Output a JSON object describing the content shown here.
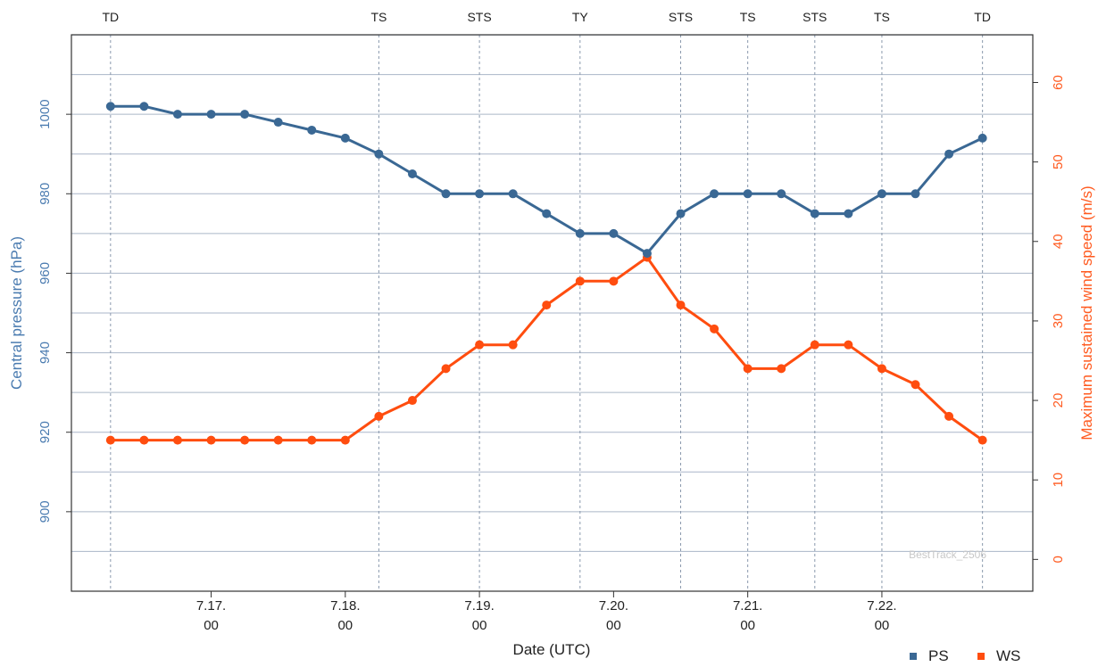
{
  "chart_data": {
    "type": "line",
    "xlabel": "Date (UTC)",
    "ylabel_left": "Central pressure (hPa)",
    "ylabel_right": "Maximum sustained wind speed (m/s)",
    "ylim_left": [
      880,
      1020
    ],
    "ylim_right": [
      -4,
      66
    ],
    "left_ticks": [
      900,
      920,
      940,
      960,
      980,
      1000
    ],
    "right_ticks": [
      0,
      10,
      20,
      30,
      40,
      50,
      60
    ],
    "x_ticks": [
      {
        "t": 18,
        "line1": "7.17.",
        "line2": "00"
      },
      {
        "t": 42,
        "line1": "7.18.",
        "line2": "00"
      },
      {
        "t": 66,
        "line1": "7.19.",
        "line2": "00"
      },
      {
        "t": 90,
        "line1": "7.20.",
        "line2": "00"
      },
      {
        "t": 114,
        "line1": "7.21.",
        "line2": "00"
      },
      {
        "t": 138,
        "line1": "7.22.",
        "line2": "00"
      }
    ],
    "x_range": [
      -7,
      165
    ],
    "times": [
      0,
      6,
      12,
      18,
      24,
      30,
      36,
      42,
      48,
      54,
      60,
      66,
      72,
      78,
      84,
      90,
      96,
      102,
      108,
      114,
      120,
      126,
      132,
      138,
      144,
      150,
      156
    ],
    "series": [
      {
        "name": "PS",
        "axis": "left",
        "color": "#3a6894",
        "values": [
          1002,
          1002,
          1000,
          1000,
          1000,
          998,
          996,
          994,
          990,
          985,
          980,
          980,
          980,
          975,
          970,
          970,
          965,
          975,
          980,
          980,
          980,
          975,
          975,
          980,
          980,
          990,
          994
        ]
      },
      {
        "name": "WS",
        "axis": "right",
        "color": "#ff4d0f",
        "values": [
          15,
          15,
          15,
          15,
          15,
          15,
          15,
          15,
          18,
          20,
          24,
          27,
          27,
          32,
          35,
          35,
          38,
          32,
          29,
          24,
          24,
          27,
          27,
          24,
          22,
          18,
          15
        ]
      }
    ],
    "classes": [
      {
        "t": 0,
        "label": "TD"
      },
      {
        "t": 48,
        "label": "TS"
      },
      {
        "t": 66,
        "label": "STS"
      },
      {
        "t": 84,
        "label": "TY"
      },
      {
        "t": 102,
        "label": "STS"
      },
      {
        "t": 114,
        "label": "TS"
      },
      {
        "t": 126,
        "label": "STS"
      },
      {
        "t": 138,
        "label": "TS"
      },
      {
        "t": 156,
        "label": "TD"
      }
    ],
    "legend": [
      {
        "name": "PS",
        "color": "#3a6894"
      },
      {
        "name": "WS",
        "color": "#ff4d0f"
      }
    ],
    "legend_position": "bottom-right",
    "grid": true,
    "watermark": "BestTrack_2506"
  }
}
